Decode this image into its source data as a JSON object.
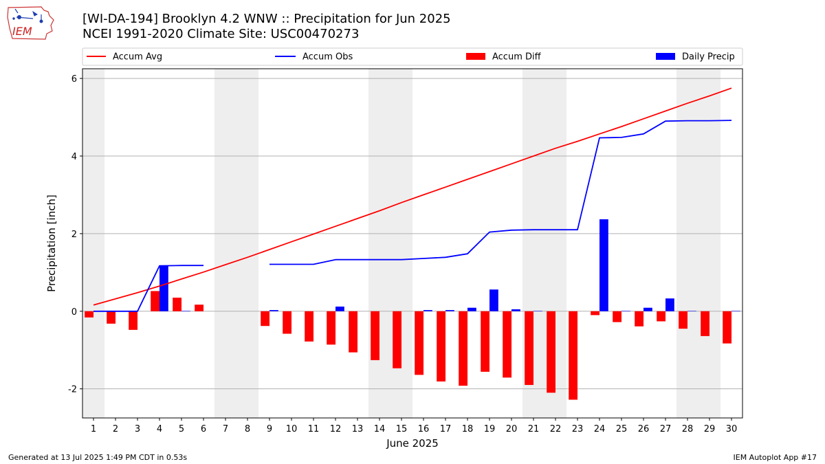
{
  "header": {
    "title_line1": "[WI-DA-194] Brooklyn 4.2 WNW :: Precipitation for Jun 2025",
    "title_line2": "NCEI 1991-2020 Climate Site: USC00470273",
    "logo_text": "IEM"
  },
  "footer": {
    "generated": "Generated at 13 Jul 2025 1:49 PM CDT in 0.53s",
    "app": "IEM Autoplot App #17"
  },
  "colors": {
    "avg": "#ff0000",
    "obs": "#0000ff",
    "diff": "#ff0000",
    "daily": "#0000ff",
    "weekend_shade": "#eeeeee",
    "grid": "#b0b0b0"
  },
  "chart_data": {
    "type": "bar",
    "xlabel": "June 2025",
    "ylabel": "Precipitation [inch]",
    "ylim": [
      -2.75,
      6.25
    ],
    "yticks": [
      -2,
      0,
      2,
      4,
      6
    ],
    "grid": "horizontal",
    "legend_position": "top",
    "x": [
      1,
      2,
      3,
      4,
      5,
      6,
      7,
      8,
      9,
      10,
      11,
      12,
      13,
      14,
      15,
      16,
      17,
      18,
      19,
      20,
      21,
      22,
      23,
      24,
      25,
      26,
      27,
      28,
      29,
      30
    ],
    "weekend_days": [
      1,
      7,
      8,
      14,
      15,
      21,
      22,
      28,
      29
    ],
    "legend": [
      "Accum Avg",
      "Accum Obs",
      "Accum Diff",
      "Daily Precip"
    ],
    "series": [
      {
        "name": "Accum Avg",
        "kind": "line",
        "values": [
          0.16,
          0.32,
          0.48,
          0.65,
          0.83,
          1.01,
          1.2,
          1.39,
          1.59,
          1.79,
          1.99,
          2.19,
          2.39,
          2.59,
          2.8,
          3.0,
          3.2,
          3.4,
          3.6,
          3.8,
          4.0,
          4.2,
          4.38,
          4.57,
          4.76,
          4.96,
          5.16,
          5.36,
          5.55,
          5.75
        ]
      },
      {
        "name": "Accum Obs",
        "kind": "line",
        "values": [
          0.0,
          0.0,
          0.0,
          1.17,
          1.18,
          1.18,
          null,
          null,
          1.21,
          1.21,
          1.21,
          1.33,
          1.33,
          1.33,
          1.33,
          1.36,
          1.39,
          1.48,
          2.04,
          2.09,
          2.1,
          2.1,
          2.1,
          4.47,
          4.48,
          4.57,
          4.9,
          4.91,
          4.91,
          4.92
        ]
      },
      {
        "name": "Accum Diff",
        "kind": "bar",
        "offset": "left",
        "values": [
          -0.16,
          -0.32,
          -0.48,
          0.52,
          0.35,
          0.17,
          null,
          null,
          -0.38,
          -0.58,
          -0.78,
          -0.86,
          -1.06,
          -1.26,
          -1.47,
          -1.64,
          -1.81,
          -1.92,
          -1.56,
          -1.71,
          -1.9,
          -2.1,
          -2.28,
          -0.1,
          -0.28,
          -0.39,
          -0.26,
          -0.45,
          -0.64,
          -0.83
        ]
      },
      {
        "name": "Daily Precip",
        "kind": "bar",
        "offset": "right",
        "values": [
          0.0,
          0.0,
          0.0,
          1.17,
          0.01,
          0.0,
          null,
          null,
          0.03,
          0.0,
          0.0,
          0.12,
          0.0,
          0.0,
          0.0,
          0.03,
          0.03,
          0.09,
          0.56,
          0.05,
          0.01,
          0.0,
          0.0,
          2.37,
          0.01,
          0.09,
          0.33,
          0.01,
          0.0,
          0.01
        ]
      }
    ]
  }
}
